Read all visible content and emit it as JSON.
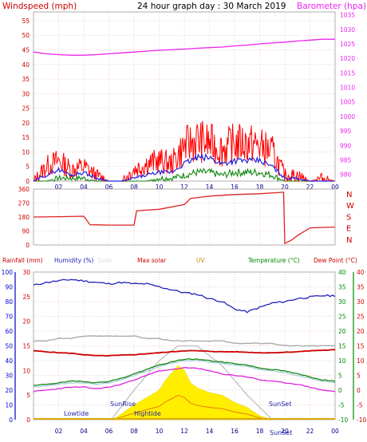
{
  "header": {
    "left_title": "Windspeed (mph)",
    "center_title": "24 hour graph day : 30 March 2019",
    "right_title": "Barometer (hpa)"
  },
  "dir_labels": [
    "N",
    "W",
    "S",
    "E",
    "N"
  ],
  "bottom_header": {
    "rainfall": "Rainfall (mm)",
    "humidity": "Humidity (%)",
    "solar": "Solar",
    "max_solar": "Max solar",
    "uv": "UV",
    "temperature": "Temperature (°C)",
    "dew_point": "Dew Point (°C)"
  },
  "annotations": {
    "lowtide": "Lowtide",
    "hightide": "Hightide",
    "sunrise": "SunRise",
    "sunset": "SunSet",
    "sunset_axis": "SunSet"
  },
  "colors": {
    "wind_gust": "#ff0000",
    "wind_avg": "#2222dd",
    "wind_low": "#118811",
    "barometer": "#ee22ee",
    "direction": "#dd2222",
    "humidity": "#2222bb",
    "max_temp_line": "#cc0000",
    "solar": "#ffee00",
    "max_solar": "#bbbbbb",
    "temperature": "#118811",
    "dew_point": "#dd22dd",
    "feels_like": "#aaccdd",
    "rain_axis": "#0000cc",
    "temp_axis": "#008800",
    "dew_axis": "#cc0000",
    "grid": "#e6a0a0"
  },
  "chart_data": [
    {
      "type": "line",
      "name": "wind-and-barometer",
      "x_ticks": [
        "02",
        "04",
        "06",
        "08",
        "10",
        "12",
        "14",
        "16",
        "18",
        "20",
        "22",
        "00"
      ],
      "y_left_ticks": [
        "0",
        "5",
        "10",
        "15",
        "20",
        "25",
        "30",
        "35",
        "40",
        "45",
        "50",
        "55"
      ],
      "y_left_range": [
        0,
        58
      ],
      "y_right_ticks": [
        "980",
        "985",
        "990",
        "995",
        "1000",
        "1005",
        "1010",
        "1015",
        "1020",
        "1025",
        "1030",
        "1035"
      ],
      "y_right_range": [
        977.7,
        1036
      ],
      "x_hours": [
        0,
        1,
        2,
        3,
        4,
        5,
        6,
        7,
        8,
        9,
        10,
        11,
        12,
        13,
        14,
        15,
        16,
        17,
        18,
        19,
        20,
        21,
        22,
        23,
        24
      ],
      "gust": [
        0,
        5,
        7,
        4,
        5,
        2,
        0,
        0,
        4,
        6,
        7,
        6,
        12,
        14,
        13,
        11,
        13,
        13,
        12,
        10,
        2,
        2,
        0,
        1,
        0
      ],
      "average": [
        0,
        2,
        4,
        2,
        3,
        1,
        0,
        0,
        1,
        2,
        3,
        3,
        6,
        8,
        8,
        6,
        7,
        7,
        7,
        5,
        1,
        1,
        0,
        0,
        0
      ],
      "low": [
        0,
        0,
        1,
        1,
        1,
        0,
        0,
        0,
        0,
        0,
        1,
        1,
        2,
        3,
        3,
        2,
        3,
        3,
        3,
        2,
        0,
        0,
        0,
        0,
        0
      ],
      "barometer": [
        1022.2,
        1021.6,
        1021.3,
        1021.1,
        1021.1,
        1021.3,
        1021.6,
        1021.9,
        1022.2,
        1022.5,
        1022.8,
        1023.0,
        1023.2,
        1023.5,
        1023.7,
        1023.9,
        1024.3,
        1024.6,
        1025.0,
        1025.3,
        1025.6,
        1026.0,
        1026.3,
        1026.6,
        1026.6
      ]
    },
    {
      "type": "line",
      "name": "wind-direction",
      "y_ticks": [
        "0",
        "90",
        "180",
        "270",
        "360"
      ],
      "y_range": [
        0,
        360
      ],
      "x_hours": [
        0,
        2,
        4,
        4.5,
        6,
        6.5,
        8,
        8.2,
        10,
        12,
        12.5,
        14,
        16,
        18,
        19.9,
        20,
        20.5,
        21,
        22,
        24
      ],
      "direction": [
        180,
        182,
        185,
        130,
        128,
        128,
        128,
        220,
        230,
        260,
        300,
        315,
        325,
        330,
        340,
        10,
        30,
        60,
        110,
        115
      ]
    },
    {
      "type": "line",
      "name": "temperature-humidity-solar",
      "y_rain_ticks": [
        "0",
        "5",
        "10",
        "15",
        "20",
        "25",
        "30"
      ],
      "y_rain_range": [
        0,
        30
      ],
      "y_hum_ticks": [
        "0",
        "10",
        "20",
        "30",
        "40",
        "50",
        "60",
        "70",
        "80",
        "90",
        "100"
      ],
      "y_temp_ticks": [
        "-10",
        "-5",
        "0",
        "5",
        "10",
        "15",
        "20",
        "25",
        "30",
        "35",
        "40"
      ],
      "y_temp_range": [
        -10,
        40
      ],
      "y_dew_ticks": [
        "-10",
        "-5",
        "0",
        "5",
        "10",
        "15",
        "20",
        "25",
        "30",
        "35",
        "40"
      ],
      "x_hours": [
        0,
        1,
        2,
        3,
        4,
        5,
        6,
        7,
        8,
        9,
        10,
        11,
        12,
        13,
        14,
        15,
        16,
        17,
        18,
        19,
        20,
        21,
        22,
        23,
        24
      ],
      "humidity": [
        91,
        93,
        94,
        95,
        94,
        93,
        92,
        93,
        92,
        92,
        90,
        88,
        86,
        85,
        82,
        80,
        75,
        73,
        76,
        79,
        80,
        82,
        83,
        84,
        84
      ],
      "temperature": [
        1.5,
        2.0,
        2.5,
        3.0,
        3.0,
        2.5,
        3.0,
        4.0,
        5.5,
        7.0,
        8.5,
        9.5,
        10.5,
        10.5,
        10.0,
        9.5,
        9.0,
        8.5,
        7.5,
        7.0,
        6.5,
        5.5,
        4.5,
        3.5,
        3.0
      ],
      "dew_point": [
        -0.5,
        0,
        0.5,
        1.0,
        1.0,
        0.5,
        1.0,
        2.0,
        3.5,
        5.0,
        6.5,
        7.0,
        7.5,
        7.5,
        6.5,
        5.5,
        5.0,
        4.5,
        3.5,
        3.0,
        2.5,
        2.0,
        1.0,
        0,
        -0.5
      ],
      "feels_like": [
        1.0,
        1.5,
        2.0,
        2.5,
        2.5,
        2.0,
        2.5,
        3.5,
        5.0,
        6.5,
        8.0,
        9.0,
        10.0,
        10.0,
        9.5,
        9.0,
        8.5,
        8.0,
        7.0,
        6.5,
        6.0,
        5.0,
        4.0,
        3.0,
        2.5
      ],
      "max_temp": [
        14,
        13.8,
        13.6,
        13.5,
        13.2,
        13,
        13,
        13.1,
        13.2,
        13.4,
        13.6,
        13.8,
        14,
        14,
        13.9,
        13.8,
        13.8,
        13.7,
        13.6,
        13.6,
        13.7,
        13.8,
        14,
        14.1,
        14.2
      ],
      "grey_line": [
        16,
        16,
        16.5,
        16.5,
        17,
        17,
        17,
        17,
        17,
        16.5,
        16.5,
        16,
        16,
        16,
        16,
        16,
        15.5,
        15.5,
        15.5,
        15.5,
        15,
        15,
        15,
        15,
        15
      ],
      "solar_hours": [
        6.3,
        7,
        8,
        9,
        10,
        10.5,
        11,
        11.5,
        12,
        12.5,
        13,
        13.5,
        14,
        15,
        16,
        17,
        18,
        19
      ],
      "solar": [
        0,
        1.2,
        3,
        4.5,
        6,
        8,
        9.5,
        11,
        10,
        7.5,
        6.5,
        6,
        5.5,
        5,
        3.5,
        2.5,
        0.8,
        0
      ],
      "max_solar_hours": [
        6.2,
        8,
        10,
        11.5,
        13,
        15,
        17,
        19
      ],
      "max_solar": [
        0,
        6,
        12,
        15,
        15,
        11,
        5,
        0
      ]
    }
  ]
}
